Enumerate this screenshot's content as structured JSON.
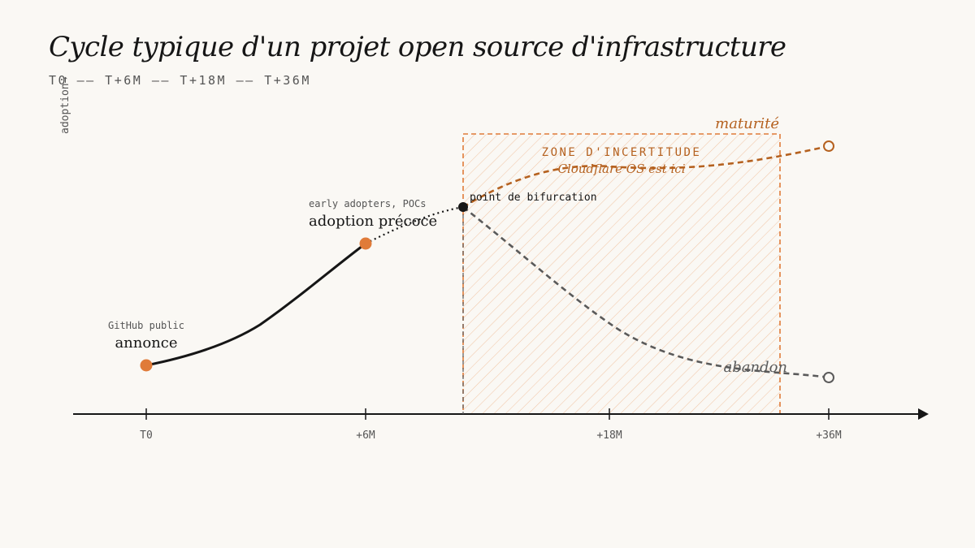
{
  "header": {
    "title": "Cycle typique d'un projet open source d'infrastructure",
    "timeline": "T0 —— T+6M —— T+18M —— T+36M"
  },
  "axis": {
    "ylabel": "adoption→",
    "ticks": [
      "T0",
      "+6M",
      "+18M",
      "+36M"
    ]
  },
  "milestones": {
    "announce": {
      "sub": "GitHub public",
      "label": "annonce"
    },
    "early": {
      "sub": "early adopters, POCs",
      "label": "adoption précoce"
    },
    "fork": {
      "label": "point de bifurcation"
    }
  },
  "zone": {
    "title": "ZONE D'INCERTITUDE",
    "note": "Cloudflare OS est ici"
  },
  "outcomes": {
    "maturity": "maturité",
    "abandon": "abandon"
  },
  "colors": {
    "accent": "#e07b39",
    "accent_dark": "#b5611f",
    "ink": "#161616",
    "muted": "#5a5a5a"
  }
}
